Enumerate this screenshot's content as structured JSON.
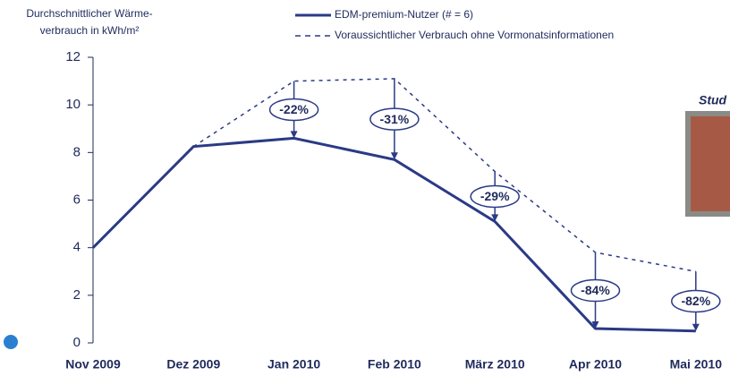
{
  "chart_data": {
    "type": "line",
    "ylabel": [
      "Durchschnittlicher Wärme-",
      "verbrauch in kWh/m²"
    ],
    "categories": [
      "Nov 2009",
      "Dez 2009",
      "Jan 2010",
      "Feb 2010",
      "März 2010",
      "Apr 2010",
      "Mai 2010"
    ],
    "series": [
      {
        "name": "EDM-premium-Nutzer (# = 6)",
        "color": "#2b3a86",
        "dash": false,
        "values": [
          4.0,
          8.25,
          8.6,
          7.7,
          5.1,
          0.6,
          0.5
        ]
      },
      {
        "name": "Voraussichtlicher Verbrauch ohne Vormonatsinformationen",
        "color": "#2b3a86",
        "dash": true,
        "values": [
          null,
          8.25,
          11.0,
          11.1,
          7.2,
          3.8,
          3.0
        ]
      }
    ],
    "annotations": [
      null,
      null,
      "-22%",
      "-31%",
      "-29%",
      "-84%",
      "-82%"
    ],
    "side_label": "Stud",
    "ylim": [
      0,
      12
    ],
    "yticks": [
      0,
      2,
      4,
      6,
      8,
      10,
      12
    ]
  }
}
